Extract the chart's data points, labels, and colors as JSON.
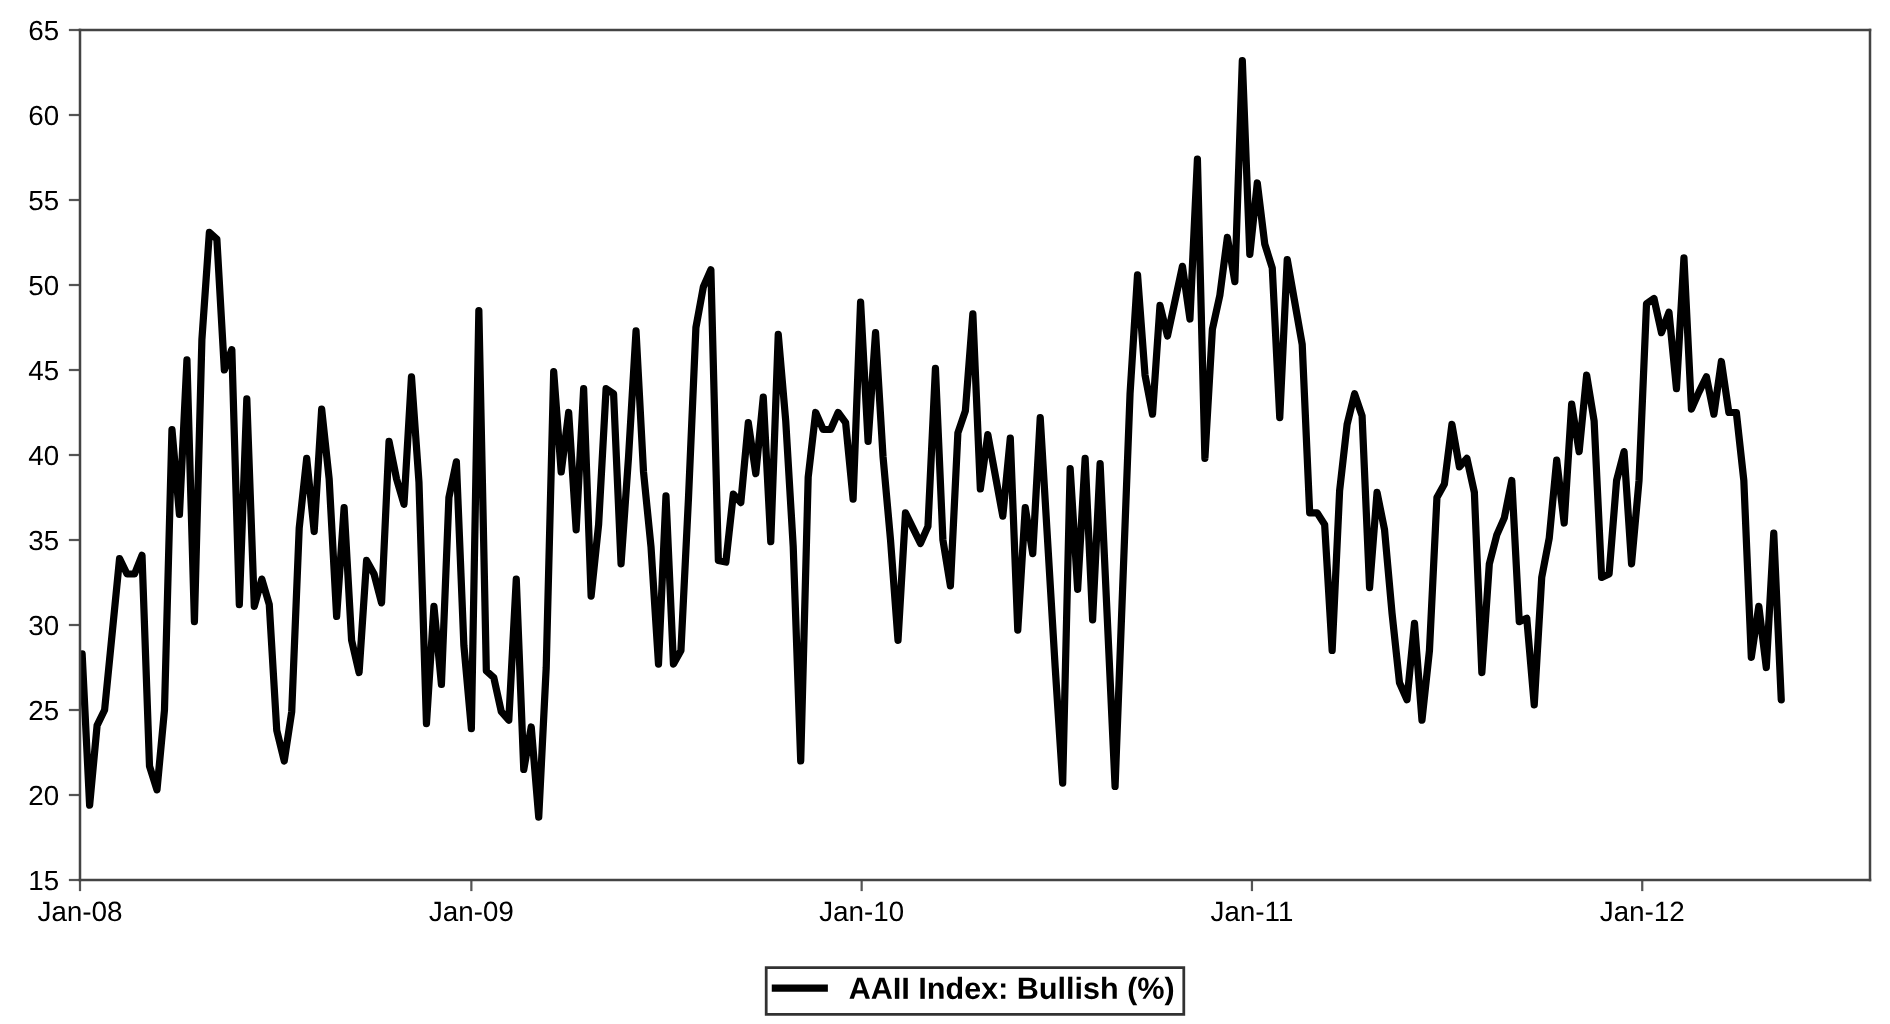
{
  "chart_data": {
    "type": "line",
    "x": [
      "2008-01-03",
      "2008-01-10",
      "2008-01-17",
      "2008-01-24",
      "2008-02-07",
      "2008-02-14",
      "2008-02-21",
      "2008-02-28",
      "2008-03-06",
      "2008-03-13",
      "2008-03-20",
      "2008-03-27",
      "2008-04-03",
      "2008-04-10",
      "2008-04-17",
      "2008-04-24",
      "2008-05-01",
      "2008-05-08",
      "2008-05-15",
      "2008-05-22",
      "2008-05-29",
      "2008-06-05",
      "2008-06-12",
      "2008-06-19",
      "2008-06-26",
      "2008-07-03",
      "2008-07-10",
      "2008-07-17",
      "2008-07-24",
      "2008-07-31",
      "2008-08-07",
      "2008-08-14",
      "2008-08-21",
      "2008-08-28",
      "2008-09-04",
      "2008-09-11",
      "2008-09-18",
      "2008-09-25",
      "2008-10-02",
      "2008-10-09",
      "2008-10-16",
      "2008-10-23",
      "2008-10-30",
      "2008-11-06",
      "2008-11-13",
      "2008-11-20",
      "2008-11-27",
      "2008-12-04",
      "2008-12-11",
      "2008-12-18",
      "2008-12-25",
      "2009-01-01",
      "2009-01-08",
      "2009-01-15",
      "2009-01-22",
      "2009-01-29",
      "2009-02-05",
      "2009-02-12",
      "2009-02-19",
      "2009-02-26",
      "2009-03-05",
      "2009-03-12",
      "2009-03-19",
      "2009-03-26",
      "2009-04-02",
      "2009-04-09",
      "2009-04-16",
      "2009-04-23",
      "2009-04-30",
      "2009-05-07",
      "2009-05-14",
      "2009-05-21",
      "2009-05-28",
      "2009-06-04",
      "2009-06-11",
      "2009-06-18",
      "2009-06-25",
      "2009-07-02",
      "2009-07-09",
      "2009-07-16",
      "2009-07-23",
      "2009-07-30",
      "2009-08-06",
      "2009-08-13",
      "2009-08-20",
      "2009-08-27",
      "2009-09-03",
      "2009-09-10",
      "2009-09-17",
      "2009-09-24",
      "2009-10-01",
      "2009-10-08",
      "2009-10-15",
      "2009-10-22",
      "2009-10-29",
      "2009-11-05",
      "2009-11-12",
      "2009-11-19",
      "2009-11-26",
      "2009-12-03",
      "2009-12-10",
      "2009-12-17",
      "2009-12-24",
      "2009-12-31",
      "2010-01-07",
      "2010-01-14",
      "2010-01-21",
      "2010-01-28",
      "2010-02-04",
      "2010-02-11",
      "2010-02-25",
      "2010-03-04",
      "2010-03-11",
      "2010-03-18",
      "2010-03-25",
      "2010-04-01",
      "2010-04-08",
      "2010-04-15",
      "2010-04-22",
      "2010-04-29",
      "2010-05-13",
      "2010-05-20",
      "2010-05-27",
      "2010-06-03",
      "2010-06-10",
      "2010-06-17",
      "2010-07-01",
      "2010-07-08",
      "2010-07-15",
      "2010-07-22",
      "2010-07-29",
      "2010-08-05",
      "2010-08-12",
      "2010-08-26",
      "2010-09-09",
      "2010-09-16",
      "2010-09-23",
      "2010-09-30",
      "2010-10-07",
      "2010-10-14",
      "2010-10-28",
      "2010-11-04",
      "2010-11-11",
      "2010-11-18",
      "2010-11-25",
      "2010-12-02",
      "2010-12-09",
      "2010-12-16",
      "2010-12-23",
      "2010-12-30",
      "2011-01-06",
      "2011-01-13",
      "2011-01-20",
      "2011-01-27",
      "2011-02-03",
      "2011-02-17",
      "2011-02-24",
      "2011-03-03",
      "2011-03-10",
      "2011-03-17",
      "2011-03-24",
      "2011-03-31",
      "2011-04-07",
      "2011-04-14",
      "2011-04-21",
      "2011-04-28",
      "2011-05-05",
      "2011-05-12",
      "2011-05-19",
      "2011-05-26",
      "2011-06-02",
      "2011-06-09",
      "2011-06-16",
      "2011-06-23",
      "2011-06-30",
      "2011-07-07",
      "2011-07-14",
      "2011-07-21",
      "2011-07-28",
      "2011-08-04",
      "2011-08-11",
      "2011-08-18",
      "2011-08-25",
      "2011-09-01",
      "2011-09-08",
      "2011-09-15",
      "2011-09-22",
      "2011-09-29",
      "2011-10-06",
      "2011-10-13",
      "2011-10-20",
      "2011-10-27",
      "2011-11-03",
      "2011-11-10",
      "2011-11-17",
      "2011-11-24",
      "2011-12-01",
      "2011-12-08",
      "2011-12-15",
      "2011-12-22",
      "2011-12-29",
      "2012-01-05",
      "2012-01-12",
      "2012-01-19",
      "2012-01-26",
      "2012-02-02",
      "2012-02-09",
      "2012-02-16",
      "2012-02-23",
      "2012-03-01",
      "2012-03-08",
      "2012-03-15",
      "2012-03-22",
      "2012-03-29",
      "2012-04-05",
      "2012-04-12",
      "2012-04-19",
      "2012-04-26",
      "2012-05-03",
      "2012-05-10"
    ],
    "series": [
      {
        "name": "AAII Index: Bullish (%)",
        "color": "#000000",
        "values": [
          28.3,
          19.4,
          24.1,
          25,
          33.9,
          33,
          33,
          34.1,
          21.7,
          20.3,
          25,
          41.5,
          36.5,
          45.6,
          30.2,
          46.8,
          53.1,
          52.7,
          45,
          46.2,
          31.2,
          43.3,
          31.1,
          32.7,
          31.2,
          23.8,
          22,
          24.9,
          35.7,
          39.8,
          35.5,
          42.7,
          38.6,
          30.5,
          36.9,
          29.1,
          27.2,
          33.8,
          33,
          31.3,
          40.8,
          38.6,
          37.1,
          44.6,
          38.4,
          24.2,
          31.1,
          26.5,
          37.5,
          39.6,
          28.8,
          23.9,
          48.5,
          27.3,
          26.9,
          24.9,
          24.4,
          32.7,
          21.5,
          24,
          18.7,
          27.5,
          44.9,
          39,
          42.5,
          35.6,
          43.9,
          31.7,
          35.9,
          43.9,
          43.6,
          33.6,
          39.9,
          47.3,
          39,
          34.6,
          27.7,
          37.6,
          27.7,
          28.5,
          37.4,
          47.5,
          49.9,
          50.9,
          33.8,
          33.7,
          37.7,
          37.2,
          41.9,
          38.9,
          43.4,
          34.9,
          47.1,
          42,
          34.6,
          22,
          38.7,
          42.5,
          41.5,
          41.5,
          42.5,
          41.9,
          37.4,
          49,
          40.8,
          47.2,
          39.9,
          35,
          29.1,
          36.6,
          34.8,
          35.8,
          45.1,
          35,
          32.3,
          41.3,
          42.6,
          48.3,
          38,
          41.2,
          36.4,
          41,
          29.7,
          36.9,
          34.2,
          42.2,
          27.5,
          20.7,
          39.2,
          32.1,
          39.8,
          30.3,
          39.5,
          20.5,
          43.6,
          50.6,
          44.7,
          42.4,
          48.8,
          47,
          51.1,
          48,
          57.4,
          39.8,
          47.4,
          49.4,
          52.8,
          50.2,
          63.2,
          51.8,
          56,
          52.4,
          51,
          42.2,
          51.5,
          46.5,
          36.6,
          36.6,
          35.9,
          28.5,
          37.9,
          41.8,
          43.6,
          42.3,
          32.2,
          37.8,
          35.6,
          30.7,
          26.6,
          25.6,
          30.1,
          24.4,
          28.5,
          37.5,
          38.3,
          41.8,
          39.3,
          39.8,
          37.8,
          27.2,
          33.6,
          35.3,
          36.3,
          38.5,
          30.2,
          30.4,
          25.3,
          32.8,
          35.1,
          39.7,
          36,
          43,
          40.2,
          44.7,
          42,
          32.8,
          33,
          38.5,
          40.2,
          33.6,
          38.5,
          48.9,
          49.2,
          47.2,
          48.4,
          43.9,
          51.6,
          42.7,
          43.7,
          44.6,
          42.4,
          45.5,
          42.5,
          42.5,
          38.5,
          28.1,
          31.1,
          27.5,
          35.4,
          25.6
        ]
      }
    ],
    "xlim": [
      "2008-01-01",
      "2012-08-01"
    ],
    "xticks": [
      {
        "value": "2008-01-01",
        "label": "Jan-08"
      },
      {
        "value": "2009-01-01",
        "label": "Jan-09"
      },
      {
        "value": "2010-01-01",
        "label": "Jan-10"
      },
      {
        "value": "2011-01-01",
        "label": "Jan-11"
      },
      {
        "value": "2012-01-01",
        "label": "Jan-12"
      }
    ],
    "ylim": [
      15,
      65
    ],
    "yticks": [
      15,
      20,
      25,
      30,
      35,
      40,
      45,
      50,
      55,
      60,
      65
    ],
    "grid": false,
    "legend": "bottom",
    "marker": "none",
    "line_style": "solid"
  }
}
